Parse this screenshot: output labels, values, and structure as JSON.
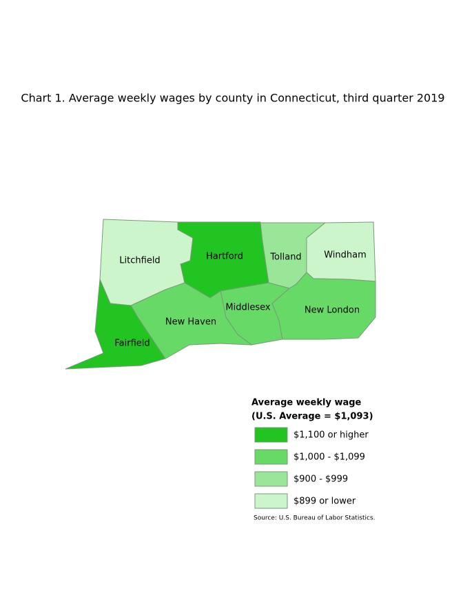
{
  "title": "Chart 1. Average weekly wages by county in Connecticut, third quarter 2019",
  "counties": [
    {
      "name": "Litchfield",
      "color": "#ccf5cc"
    },
    {
      "name": "Hartford",
      "color": "#22c422"
    },
    {
      "name": "Tolland",
      "color": "#99e699"
    },
    {
      "name": "Windham",
      "color": "#ccf5cc"
    },
    {
      "name": "Middlesex",
      "color": "#66d966"
    },
    {
      "name": "New London",
      "color": "#66d966"
    },
    {
      "name": "New Haven",
      "color": "#66d966"
    },
    {
      "name": "Fairfield",
      "color": "#22c422"
    }
  ],
  "legend": {
    "title": [
      "Average weekly wage",
      "(U.S. Average = $1,093)"
    ],
    "items": [
      {
        "label": "$1,100 or higher",
        "color": "#22c422"
      },
      {
        "label": "$1,000 - $1,099",
        "color": "#66d966"
      },
      {
        "label": "$900 - $999",
        "color": "#99e699"
      },
      {
        "label": "$899 or lower",
        "color": "#ccf5cc"
      }
    ]
  },
  "source": "Source: U.S. Bureau of Labor Statistics."
}
